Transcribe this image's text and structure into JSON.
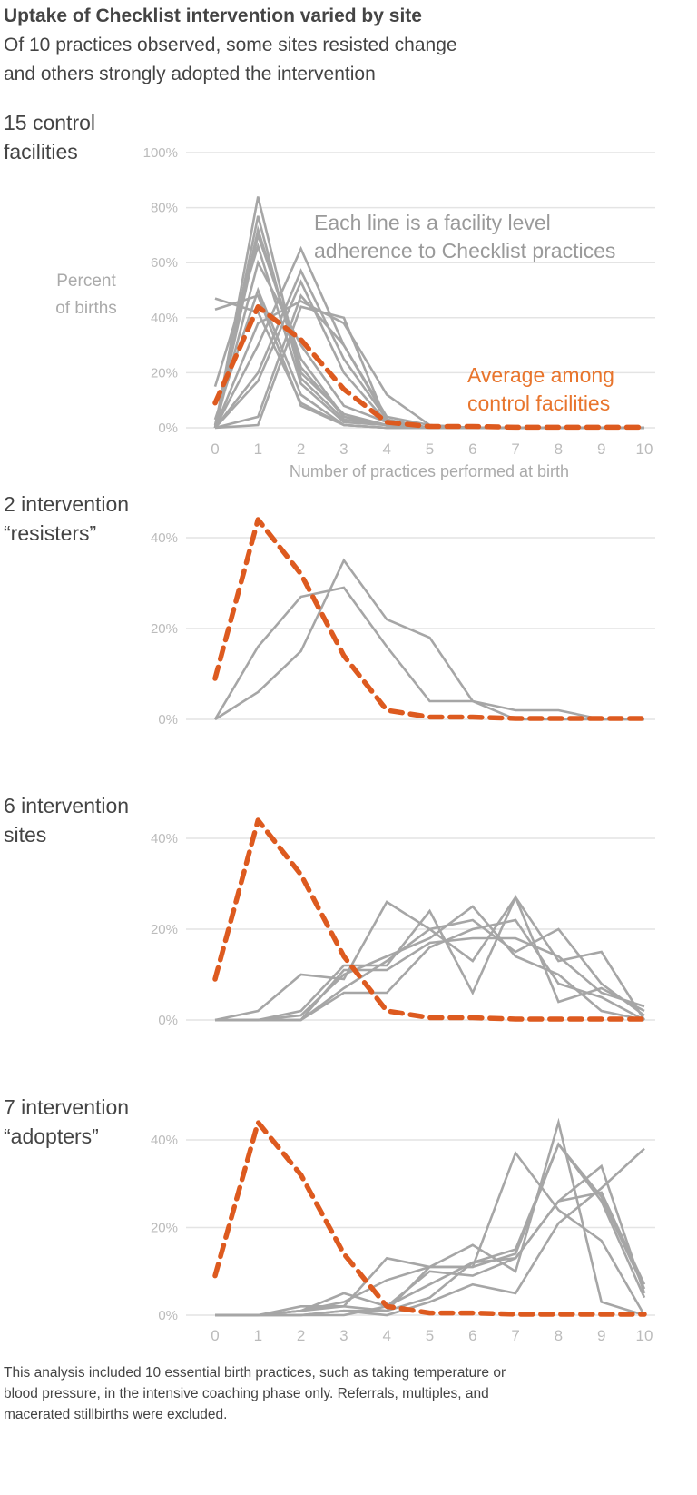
{
  "title": "Uptake of Checklist intervention varied by site",
  "subtitle": [
    "Of 10 practices observed, some sites resisted change",
    "and others strongly adopted the intervention"
  ],
  "footnote": [
    "This analysis included 10 essential birth practices, such as taking temperature or",
    "blood pressure, in the intensive coaching phase only. Referrals, multiples, and",
    "macerated stillbirths were excluded."
  ],
  "colors": {
    "facility_line": "#a6a6a6",
    "average_line": "#dd5a1f",
    "gridline": "#e4e4e4",
    "average_label": "#e8752d"
  },
  "chart_data": [
    {
      "type": "line",
      "panel_label": [
        "15 control",
        "facilities"
      ],
      "ylabel": [
        "Percent",
        "of births"
      ],
      "xlabel": "Number of practices performed at birth",
      "x": [
        0,
        1,
        2,
        3,
        4,
        5,
        6,
        7,
        8,
        9,
        10
      ],
      "xticks": [
        "0",
        "1",
        "2",
        "3",
        "4",
        "5",
        "6",
        "7",
        "8",
        "9",
        "10"
      ],
      "yticks": [
        "0%",
        "20%",
        "40%",
        "60%",
        "80%",
        "100%"
      ],
      "ylim": [
        0,
        100
      ],
      "grid": true,
      "annotation": [
        "Each line is a facility level",
        "adherence to Checklist practices"
      ],
      "average_label": [
        "Average among",
        "control facilities"
      ],
      "average": [
        9,
        44,
        32,
        14,
        2,
        0.5,
        0.5,
        0.2,
        0.2,
        0.2,
        0.2
      ],
      "series": [
        {
          "values": [
            0,
            84,
            20,
            5,
            1,
            0,
            0,
            0,
            0,
            0,
            0
          ]
        },
        {
          "values": [
            0,
            77,
            18,
            3,
            1,
            0,
            0,
            0,
            0,
            0,
            0
          ]
        },
        {
          "values": [
            1,
            72,
            22,
            4,
            1,
            0,
            0,
            0,
            0,
            0,
            0
          ]
        },
        {
          "values": [
            0,
            70,
            25,
            4,
            1,
            0,
            0,
            0,
            0,
            0,
            0
          ]
        },
        {
          "values": [
            15,
            66,
            16,
            2,
            1,
            0,
            0,
            0,
            0,
            0,
            0
          ]
        },
        {
          "values": [
            0,
            60,
            30,
            8,
            2,
            0,
            0,
            0,
            0,
            0,
            0
          ]
        },
        {
          "values": [
            3,
            50,
            12,
            1,
            0,
            0,
            0,
            0,
            0,
            0,
            0
          ]
        },
        {
          "values": [
            47,
            42,
            9,
            1,
            0,
            0,
            0,
            0,
            0,
            0,
            0
          ]
        },
        {
          "values": [
            43,
            48,
            8,
            1,
            0,
            0,
            0,
            0,
            0,
            0,
            0
          ]
        },
        {
          "values": [
            0,
            38,
            46,
            38,
            12,
            1,
            0,
            0,
            0,
            0,
            0
          ]
        },
        {
          "values": [
            0,
            30,
            65,
            30,
            4,
            1,
            0,
            0,
            0,
            0,
            0
          ]
        },
        {
          "values": [
            0,
            20,
            57,
            25,
            3,
            0,
            0,
            0,
            0,
            0,
            0
          ]
        },
        {
          "values": [
            0,
            17,
            53,
            20,
            2,
            0,
            0,
            0,
            0,
            0,
            0
          ]
        },
        {
          "values": [
            0,
            4,
            48,
            30,
            3,
            0,
            0,
            0,
            0,
            0,
            0
          ]
        },
        {
          "values": [
            0,
            1,
            44,
            40,
            2,
            0,
            0,
            0,
            0,
            0,
            0
          ]
        }
      ]
    },
    {
      "type": "line",
      "panel_label": [
        "2 intervention",
        "“resisters”"
      ],
      "x": [
        0,
        1,
        2,
        3,
        4,
        5,
        6,
        7,
        8,
        9,
        10
      ],
      "yticks": [
        "0%",
        "20%",
        "40%"
      ],
      "ylim": [
        0,
        40
      ],
      "grid": true,
      "average": [
        9,
        44,
        32,
        14,
        2,
        0.5,
        0.5,
        0.2,
        0.2,
        0.2,
        0.2
      ],
      "series": [
        {
          "values": [
            0,
            16,
            27,
            29,
            16,
            4,
            4,
            2,
            2,
            0,
            0
          ]
        },
        {
          "values": [
            0,
            6,
            15,
            35,
            22,
            18,
            4,
            0,
            0,
            0,
            0
          ]
        }
      ]
    },
    {
      "type": "line",
      "panel_label": [
        "6 intervention",
        "sites"
      ],
      "x": [
        0,
        1,
        2,
        3,
        4,
        5,
        6,
        7,
        8,
        9,
        10
      ],
      "yticks": [
        "0%",
        "20%",
        "40%"
      ],
      "ylim": [
        0,
        40
      ],
      "grid": true,
      "average": [
        9,
        44,
        32,
        14,
        2,
        0.5,
        0.5,
        0.2,
        0.2,
        0.2,
        0.2
      ],
      "series": [
        {
          "values": [
            0,
            2,
            10,
            9,
            26,
            20,
            13,
            27,
            13,
            15,
            0
          ]
        },
        {
          "values": [
            0,
            0,
            2,
            12,
            12,
            24,
            6,
            27,
            4,
            7,
            2
          ]
        },
        {
          "values": [
            0,
            0,
            1,
            10,
            14,
            18,
            25,
            14,
            10,
            2,
            0
          ]
        },
        {
          "values": [
            0,
            0,
            0,
            7,
            13,
            20,
            22,
            15,
            20,
            8,
            1
          ]
        },
        {
          "values": [
            0,
            0,
            0,
            11,
            11,
            17,
            18,
            18,
            14,
            6,
            3
          ]
        },
        {
          "values": [
            0,
            0,
            0,
            6,
            6,
            16,
            20,
            22,
            8,
            5,
            0
          ]
        }
      ]
    },
    {
      "type": "line",
      "panel_label": [
        "7 intervention",
        "“adopters”"
      ],
      "x": [
        0,
        1,
        2,
        3,
        4,
        5,
        6,
        7,
        8,
        9,
        10
      ],
      "xticks": [
        "0",
        "1",
        "2",
        "3",
        "4",
        "5",
        "6",
        "7",
        "8",
        "9",
        "10"
      ],
      "yticks": [
        "0%",
        "20%",
        "40%"
      ],
      "ylim": [
        0,
        40
      ],
      "grid": true,
      "average": [
        9,
        44,
        32,
        14,
        2,
        0.5,
        0.5,
        0.2,
        0.2,
        0.2,
        0.2
      ],
      "series": [
        {
          "values": [
            0,
            0,
            1,
            2,
            13,
            11,
            11,
            37,
            24,
            17,
            0
          ]
        },
        {
          "values": [
            0,
            0,
            1,
            3,
            8,
            11,
            16,
            10,
            44,
            3,
            0
          ]
        },
        {
          "values": [
            0,
            0,
            2,
            2,
            1,
            11,
            11,
            14,
            39,
            27,
            6
          ]
        },
        {
          "values": [
            0,
            0,
            1,
            5,
            2,
            7,
            12,
            15,
            39,
            26,
            4
          ]
        },
        {
          "values": [
            0,
            0,
            0,
            1,
            1,
            4,
            12,
            13,
            26,
            34,
            5
          ]
        },
        {
          "values": [
            0,
            0,
            0,
            1,
            0,
            3,
            7,
            5,
            21,
            29,
            38
          ]
        },
        {
          "values": [
            0,
            0,
            0,
            0,
            2,
            10,
            9,
            13,
            26,
            28,
            7
          ]
        }
      ]
    }
  ]
}
